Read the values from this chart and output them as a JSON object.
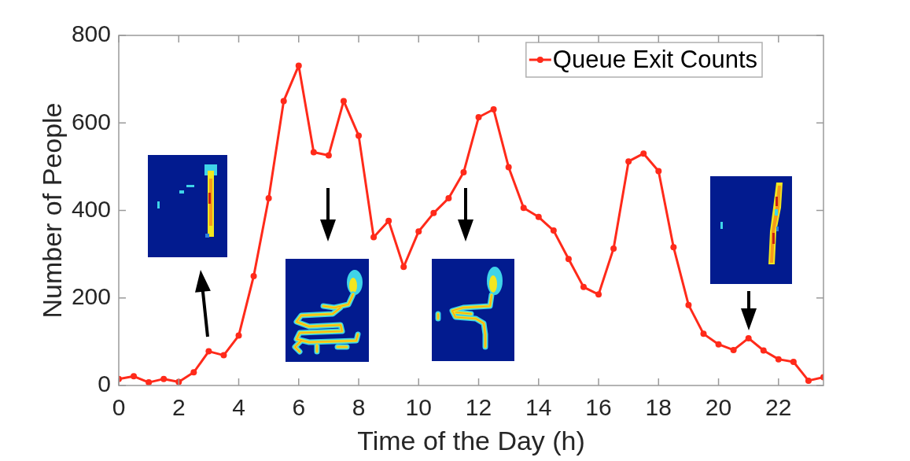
{
  "chart_data": {
    "type": "line",
    "xlabel": "Time of the Day (h)",
    "ylabel": "Number of People",
    "x": [
      0,
      0.5,
      1,
      1.5,
      2,
      2.5,
      3,
      3.5,
      4,
      4.5,
      5,
      5.5,
      6,
      6.5,
      7,
      7.5,
      8,
      8.5,
      9,
      9.5,
      10,
      10.5,
      11,
      11.5,
      12,
      12.5,
      13,
      13.5,
      14,
      14.5,
      15,
      15.5,
      16,
      16.5,
      17,
      17.5,
      18,
      18.5,
      19,
      19.5,
      20,
      20.5,
      21,
      21.5,
      22,
      22.5,
      23,
      23.5
    ],
    "series": [
      {
        "name": "Queue Exit Counts",
        "color": "#ff2a1a",
        "values": [
          15,
          21,
          7,
          15,
          8,
          30,
          78,
          69,
          114,
          250,
          428,
          650,
          731,
          533,
          526,
          650,
          571,
          339,
          376,
          271,
          352,
          394,
          428,
          487,
          613,
          631,
          499,
          406,
          385,
          354,
          289,
          225,
          208,
          313,
          512,
          530,
          490,
          316,
          184,
          118,
          94,
          81,
          108,
          80,
          60,
          54,
          11,
          19
        ]
      }
    ],
    "xlim": [
      0,
      23.5
    ],
    "xticks": [
      0,
      2,
      4,
      6,
      8,
      10,
      12,
      14,
      16,
      18,
      20,
      22
    ],
    "ylim": [
      0,
      800
    ],
    "yticks": [
      0,
      200,
      400,
      600,
      800
    ],
    "legend": "top right",
    "marker": "circle",
    "line_style": "solid"
  }
}
